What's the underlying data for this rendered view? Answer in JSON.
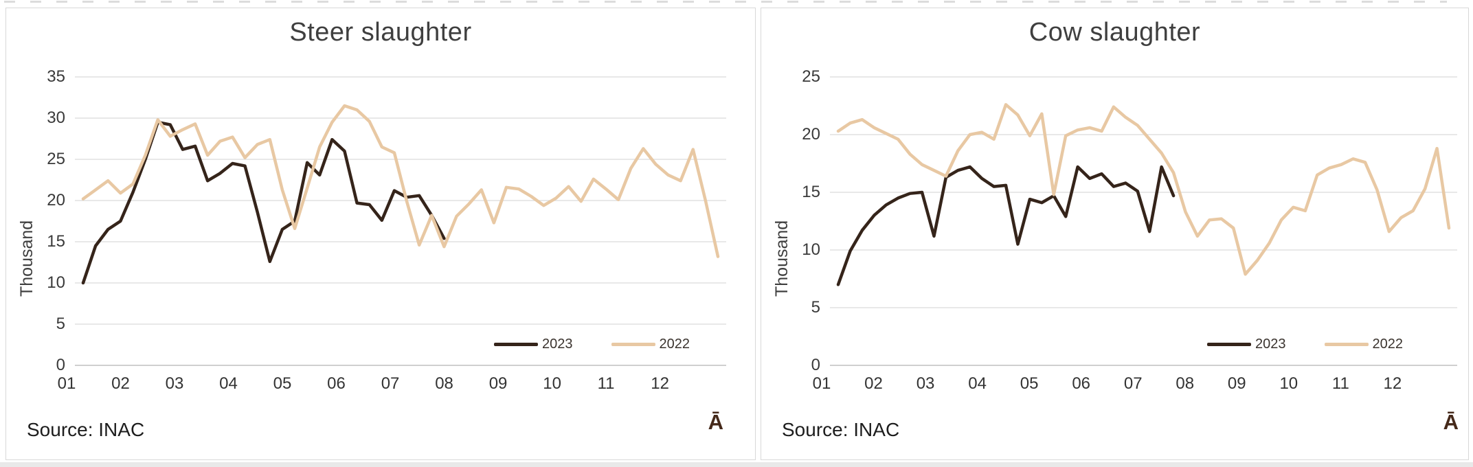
{
  "chart_data": [
    {
      "type": "line",
      "title": "Steer slaughter",
      "ylabel": "Thousand",
      "ylim": [
        0,
        35
      ],
      "y_ticks": [
        0,
        5,
        10,
        15,
        20,
        25,
        30,
        35
      ],
      "x_tick_labels": [
        "01",
        "02",
        "03",
        "04",
        "05",
        "06",
        "07",
        "08",
        "09",
        "10",
        "11",
        "12"
      ],
      "grid": true,
      "legend_position": "inside-bottom-right",
      "source": "Source: INAC",
      "watermark": "Ā",
      "series": [
        {
          "name": "2023",
          "color": "#35241a",
          "values": [
            10,
            14.5,
            16.5,
            17.5,
            21,
            25,
            29.5,
            29.2,
            26.2,
            26.6,
            22.4,
            23.3,
            24.5,
            24.2,
            18.6,
            12.6,
            16.5,
            17.5,
            24.6,
            23.1,
            27.4,
            26,
            19.7,
            19.5,
            17.6,
            21.2,
            20.4,
            20.6,
            18.2,
            15.4
          ]
        },
        {
          "name": "2022",
          "color": "#e8c8a3",
          "values": [
            20.2,
            21.3,
            22.4,
            20.9,
            22,
            25.5,
            29.8,
            27.8,
            28.6,
            29.3,
            25.5,
            27.2,
            27.7,
            25.2,
            26.8,
            27.4,
            21.3,
            16.6,
            21.5,
            26.5,
            29.5,
            31.5,
            31,
            29.6,
            26.5,
            25.8,
            19.9,
            14.6,
            18.2,
            14.4,
            18.1,
            19.6,
            21.3,
            17.3,
            21.6,
            21.4,
            20.5,
            19.4,
            20.3,
            21.7,
            19.9,
            22.6,
            21.4,
            20.1,
            23.9,
            26.3,
            24.4,
            23.1,
            22.4,
            26.2,
            20,
            13.2
          ]
        }
      ]
    },
    {
      "type": "line",
      "title": "Cow slaughter",
      "ylabel": "Thousand",
      "ylim": [
        0,
        25
      ],
      "y_ticks": [
        0,
        5,
        10,
        15,
        20,
        25
      ],
      "x_tick_labels": [
        "01",
        "02",
        "03",
        "04",
        "05",
        "06",
        "07",
        "08",
        "09",
        "10",
        "11",
        "12"
      ],
      "grid": true,
      "legend_position": "inside-bottom-right",
      "source": "Source: INAC",
      "watermark": "Ā",
      "series": [
        {
          "name": "2023",
          "color": "#35241a",
          "values": [
            7,
            9.9,
            11.7,
            13,
            13.9,
            14.5,
            14.9,
            15,
            11.2,
            16.3,
            16.9,
            17.2,
            16.2,
            15.5,
            15.6,
            10.5,
            14.4,
            14.1,
            14.7,
            12.9,
            17.2,
            16.2,
            16.6,
            15.5,
            15.8,
            15.1,
            11.6,
            17.2,
            14.7
          ]
        },
        {
          "name": "2022",
          "color": "#e8c8a3",
          "values": [
            20.3,
            21,
            21.3,
            20.6,
            20.1,
            19.6,
            18.3,
            17.4,
            16.9,
            16.4,
            18.6,
            20,
            20.2,
            19.6,
            22.6,
            21.7,
            19.9,
            21.8,
            14.8,
            19.9,
            20.4,
            20.6,
            20.3,
            22.4,
            21.5,
            20.8,
            19.6,
            18.4,
            16.7,
            13.3,
            11.2,
            12.6,
            12.7,
            11.9,
            7.9,
            9.1,
            10.6,
            12.6,
            13.7,
            13.4,
            16.5,
            17.1,
            17.4,
            17.9,
            17.6,
            15.2,
            11.6,
            12.8,
            13.4,
            15.3,
            18.8,
            11.9
          ]
        }
      ]
    }
  ]
}
